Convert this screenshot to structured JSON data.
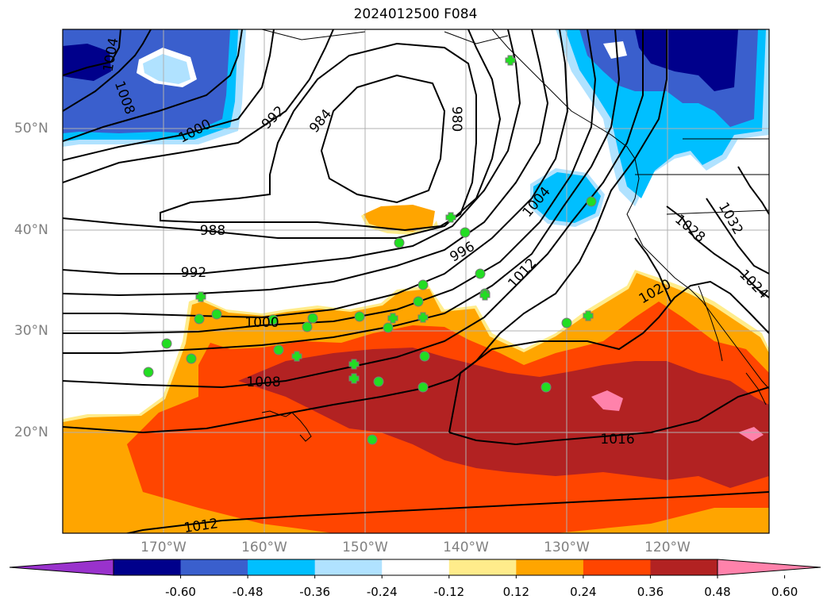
{
  "title": "2024012500 F084",
  "lat_labels": [
    "50°N",
    "40°N",
    "30°N",
    "20°N"
  ],
  "lon_labels": [
    "170°W",
    "160°W",
    "150°W",
    "140°W",
    "130°W",
    "120°W"
  ],
  "contour_labels": [
    "1004",
    "1008",
    "1000",
    "992",
    "984",
    "980",
    "988",
    "992",
    "996",
    "1004",
    "1012",
    "1000",
    "1008",
    "1012",
    "1016",
    "1020",
    "1028",
    "1032",
    "1024"
  ],
  "colorbar": {
    "tick_labels": [
      "-0.60",
      "-0.48",
      "-0.36",
      "-0.24",
      "-0.12",
      "0.12",
      "0.24",
      "0.36",
      "0.48",
      "0.60"
    ],
    "colors": [
      "#9932cc",
      "#00008b",
      "#3a5fcd",
      "#00bfff",
      "#b0e2ff",
      "#ffffff",
      "#ffec8b",
      "#ffa500",
      "#ff4500",
      "#b22222",
      "#ff82ab"
    ],
    "extend": "both"
  },
  "colors": {
    "grid": "#b0b0b0",
    "contour": "#000000",
    "marker": "#22dd22"
  }
}
